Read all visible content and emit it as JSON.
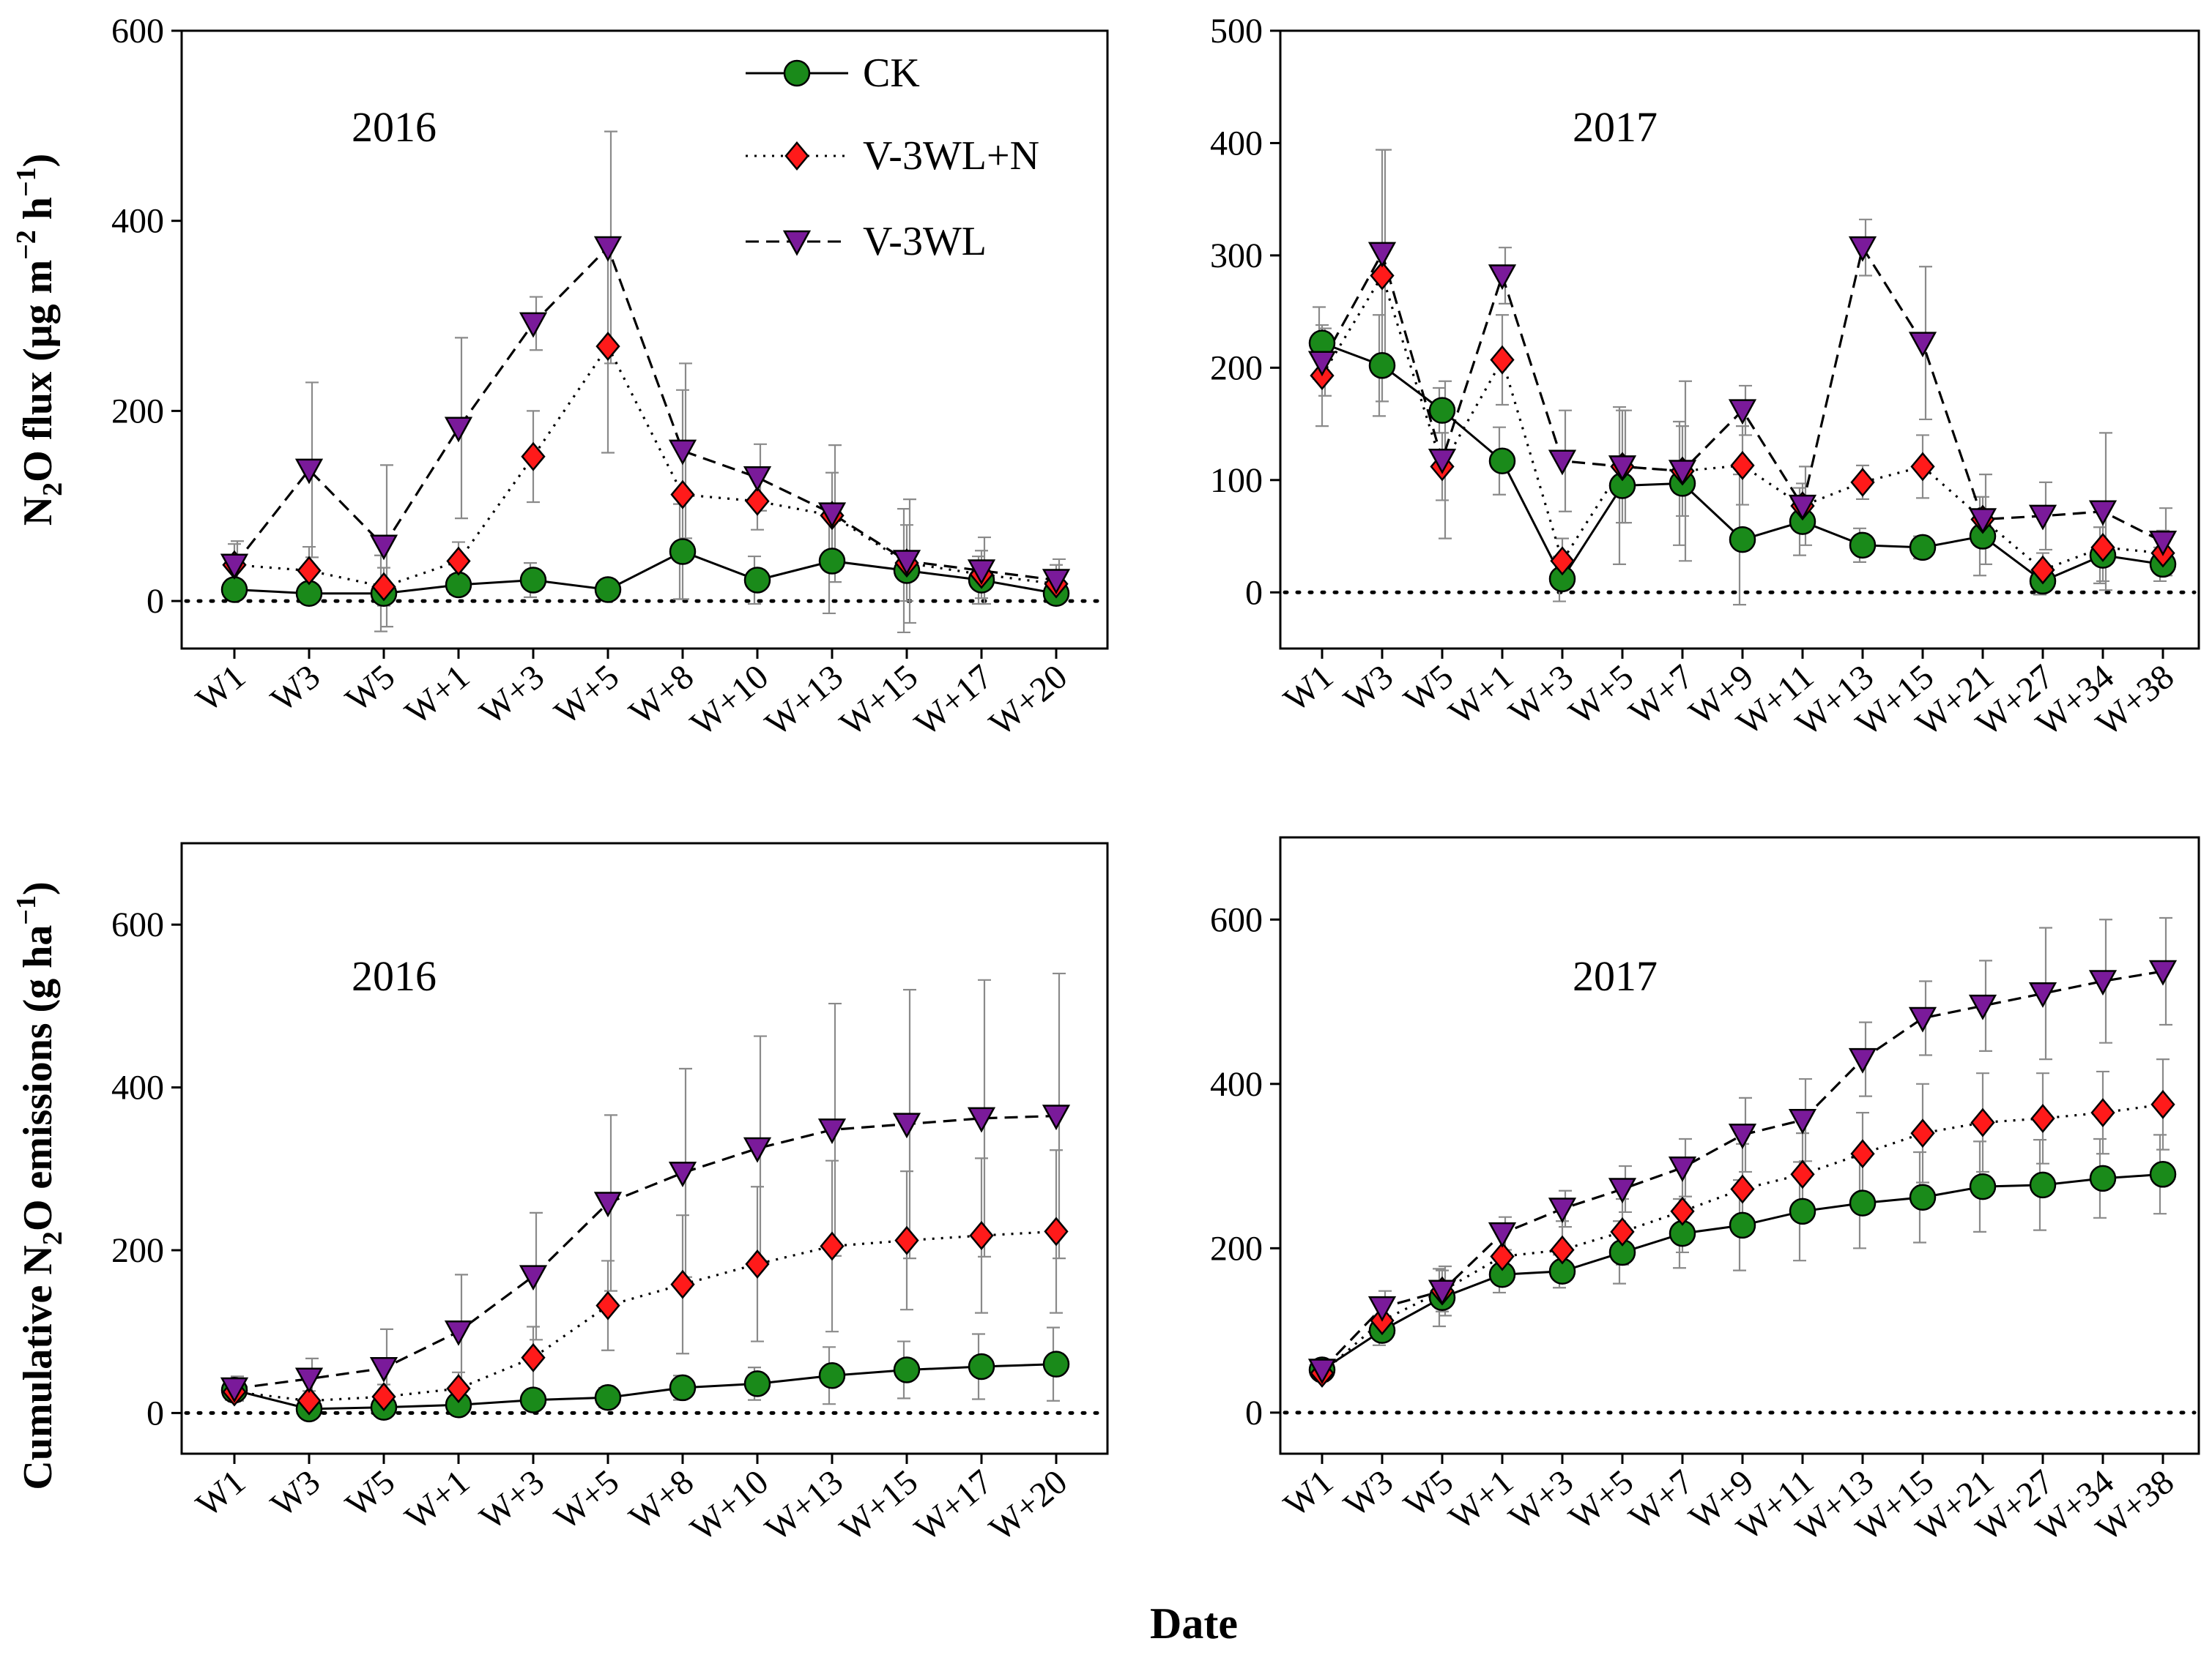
{
  "figure": {
    "xlabel": "Date",
    "ylabel_top_parts": [
      "N",
      "2",
      "O flux (",
      "μg m",
      "−2",
      " h",
      "−1",
      ")"
    ],
    "ylabel_bottom_parts": [
      "Cumulative N",
      "2",
      "O emissions (g ha",
      "−1",
      ")"
    ]
  },
  "legend": [
    {
      "name": "CK",
      "color": "#1a8a1a",
      "marker": "circle",
      "line": "solid"
    },
    {
      "name": "V-3WL+N",
      "color": "#ff1a1a",
      "marker": "diamond",
      "line": "dotted"
    },
    {
      "name": "V-3WL",
      "color": "#7a1a9a",
      "marker": "triangle-down",
      "line": "dashed"
    }
  ],
  "chart_data": [
    {
      "type": "line",
      "panel": "top-left",
      "title": "2016",
      "ylabel": "N2O flux (μg m−2 h−1)",
      "ylim": [
        -50,
        600
      ],
      "yticks": [
        "0",
        "200",
        "400",
        "600"
      ],
      "categories": [
        "W1",
        "W3",
        "W5",
        "W+1",
        "W+3",
        "W+5",
        "W+8",
        "W+10",
        "W+13",
        "W+15",
        "W+17",
        "W+20"
      ],
      "series": [
        {
          "name": "CK",
          "values": [
            12,
            8,
            8,
            17,
            22,
            12,
            52,
            22,
            42,
            32,
            22,
            8
          ],
          "err": [
            6,
            6,
            40,
            10,
            18,
            8,
            50,
            25,
            55,
            65,
            25,
            10
          ]
        },
        {
          "name": "V-3WL+N",
          "values": [
            38,
            32,
            15,
            42,
            152,
            268,
            112,
            105,
            90,
            40,
            28,
            18
          ],
          "err": [
            22,
            25,
            20,
            20,
            48,
            112,
            110,
            30,
            45,
            40,
            25,
            20
          ]
        },
        {
          "name": "V-3WL",
          "values": [
            38,
            138,
            58,
            182,
            292,
            372,
            158,
            130,
            92,
            42,
            32,
            22
          ],
          "err": [
            25,
            92,
            85,
            95,
            28,
            122,
            92,
            35,
            72,
            65,
            35,
            22
          ]
        }
      ]
    },
    {
      "type": "line",
      "panel": "top-right",
      "title": "2017",
      "ylim": [
        -50,
        500
      ],
      "yticks": [
        "0",
        "100",
        "200",
        "300",
        "400",
        "500"
      ],
      "categories": [
        "W1",
        "W3",
        "W5",
        "W+1",
        "W+3",
        "W+5",
        "W+7",
        "W+9",
        "W+11",
        "W+13",
        "W+15",
        "W+21",
        "W+27",
        "W+34",
        "W+38"
      ],
      "series": [
        {
          "name": "CK",
          "values": [
            222,
            202,
            162,
            117,
            12,
            95,
            97,
            47,
            63,
            42,
            40,
            50,
            10,
            33,
            25
          ],
          "err": [
            32,
            45,
            20,
            30,
            20,
            70,
            55,
            58,
            30,
            15,
            10,
            35,
            12,
            25,
            15
          ]
        },
        {
          "name": "V-3WL+N",
          "values": [
            193,
            282,
            112,
            207,
            28,
            112,
            108,
            113,
            77,
            98,
            112,
            65,
            20,
            40,
            35
          ],
          "err": [
            45,
            112,
            30,
            40,
            20,
            50,
            40,
            35,
            20,
            15,
            28,
            20,
            15,
            30,
            20
          ]
        },
        {
          "name": "V-3WL",
          "values": [
            205,
            302,
            118,
            282,
            117,
            112,
            108,
            162,
            77,
            307,
            222,
            65,
            68,
            72,
            45
          ],
          "err": [
            30,
            92,
            70,
            25,
            45,
            50,
            80,
            22,
            35,
            25,
            68,
            40,
            30,
            70,
            30
          ]
        }
      ]
    },
    {
      "type": "line",
      "panel": "bottom-left",
      "title": "2016",
      "ylabel": "Cumulative N2O emissions (g ha−1)",
      "ylim": [
        -50,
        700
      ],
      "yticks": [
        "0",
        "200",
        "400",
        "600"
      ],
      "categories": [
        "W1",
        "W3",
        "W5",
        "W+1",
        "W+3",
        "W+5",
        "W+8",
        "W+10",
        "W+13",
        "W+15",
        "W+17",
        "W+20"
      ],
      "series": [
        {
          "name": "CK",
          "values": [
            28,
            5,
            7,
            10,
            16,
            19,
            31,
            36,
            46,
            53,
            57,
            60
          ],
          "err": [
            12,
            5,
            8,
            10,
            10,
            12,
            15,
            20,
            35,
            35,
            40,
            45
          ]
        },
        {
          "name": "V-3WL+N",
          "values": [
            26,
            15,
            20,
            30,
            68,
            132,
            158,
            183,
            205,
            212,
            218,
            223
          ],
          "err": [
            12,
            12,
            15,
            20,
            38,
            55,
            85,
            95,
            105,
            85,
            95,
            100
          ]
        },
        {
          "name": "V-3WL",
          "values": [
            30,
            42,
            55,
            100,
            168,
            258,
            295,
            325,
            348,
            355,
            362,
            365
          ],
          "err": [
            15,
            25,
            48,
            70,
            78,
            108,
            128,
            138,
            155,
            165,
            170,
            175
          ]
        }
      ]
    },
    {
      "type": "line",
      "panel": "bottom-right",
      "title": "2017",
      "ylim": [
        -50,
        700
      ],
      "yticks": [
        "0",
        "200",
        "400",
        "600"
      ],
      "categories": [
        "W1",
        "W3",
        "W5",
        "W+1",
        "W+3",
        "W+5",
        "W+7",
        "W+9",
        "W+11",
        "W+13",
        "W+15",
        "W+21",
        "W+27",
        "W+34",
        "W+38"
      ],
      "series": [
        {
          "name": "CK",
          "values": [
            52,
            100,
            140,
            168,
            172,
            195,
            218,
            228,
            245,
            255,
            262,
            275,
            277,
            285,
            290
          ],
          "err": [
            8,
            18,
            35,
            22,
            20,
            38,
            42,
            55,
            60,
            55,
            55,
            55,
            55,
            48,
            48
          ]
        },
        {
          "name": "V-3WL+N",
          "values": [
            48,
            112,
            148,
            190,
            198,
            220,
            245,
            272,
            290,
            315,
            340,
            353,
            358,
            365,
            375
          ],
          "err": [
            10,
            18,
            25,
            28,
            35,
            40,
            50,
            55,
            50,
            50,
            60,
            60,
            55,
            50,
            55
          ]
        },
        {
          "name": "V-3WL",
          "values": [
            52,
            128,
            148,
            218,
            248,
            272,
            298,
            338,
            356,
            430,
            480,
            495,
            510,
            525,
            537
          ],
          "err": [
            10,
            20,
            30,
            20,
            22,
            28,
            35,
            45,
            50,
            45,
            45,
            55,
            80,
            75,
            65
          ]
        }
      ]
    }
  ]
}
